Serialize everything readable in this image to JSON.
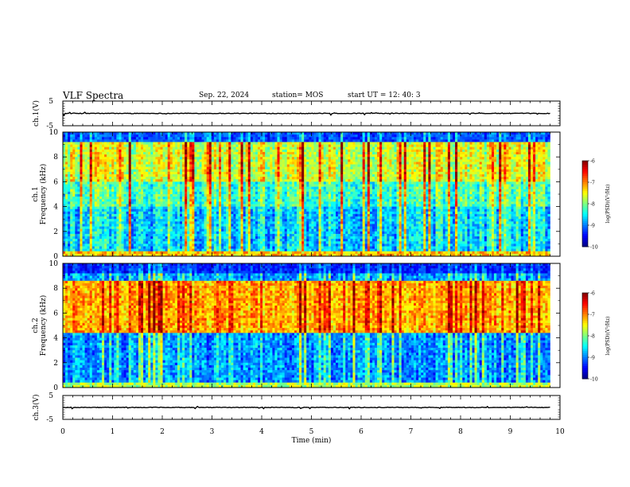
{
  "header": {
    "title": "VLF Spectra",
    "date": "Sep. 22, 2024",
    "station": "station= MOS",
    "start_ut": "start  UT  =    12: 40: 3"
  },
  "chart_data": [
    {
      "type": "line",
      "panel": "ch1-waveform",
      "ylabel": "ch.1(V)",
      "ylim": [
        -5,
        5
      ],
      "y_ticks": [
        "5",
        "-5"
      ],
      "xlim": [
        0,
        10
      ],
      "trace_end_min": 9.8,
      "baseline_v": 0
    },
    {
      "type": "heatmap",
      "panel": "ch1-spectrogram",
      "ylabel_line1": "ch.1",
      "ylabel_line2": "Frequency (kHz)",
      "ylim": [
        0,
        10
      ],
      "y_ticks": [
        "0",
        "2",
        "4",
        "6",
        "8",
        "10"
      ],
      "xlim": [
        0,
        10
      ],
      "data_end_min": 9.8,
      "colorbar": {
        "label": "log(PSD)(V²/Hz)",
        "range": [
          -10,
          -6
        ],
        "ticks": [
          "-6",
          "-7",
          "-8",
          "-9",
          "-10"
        ]
      },
      "dominant_band_khz": [
        0.5,
        9.0
      ]
    },
    {
      "type": "heatmap",
      "panel": "ch2-spectrogram",
      "ylabel_line1": "ch.2",
      "ylabel_line2": "Frequency (kHz)",
      "ylim": [
        0,
        10
      ],
      "y_ticks": [
        "0",
        "2",
        "4",
        "6",
        "8",
        "10"
      ],
      "xlim": [
        0,
        10
      ],
      "data_end_min": 9.8,
      "colorbar": {
        "label": "log(PSD)(V²/Hz)",
        "range": [
          -10,
          -6
        ],
        "ticks": [
          "-6",
          "-7",
          "-8",
          "-9",
          "-10"
        ]
      },
      "dominant_band_khz": [
        4.5,
        8.5
      ]
    },
    {
      "type": "line",
      "panel": "ch3-waveform",
      "ylabel": "ch.3(V)",
      "ylim": [
        -5,
        5
      ],
      "y_ticks": [
        "5",
        "-5"
      ],
      "xlim": [
        0,
        10
      ],
      "trace_end_min": 9.8,
      "baseline_v": 0,
      "xlabel": "Time  (min)",
      "x_ticks": [
        "0",
        "1",
        "2",
        "3",
        "4",
        "5",
        "6",
        "7",
        "8",
        "9",
        "10"
      ]
    }
  ],
  "colors": {
    "jet": [
      "#00007f",
      "#0000ff",
      "#007fff",
      "#00ffff",
      "#7fff7f",
      "#ffff00",
      "#ff7f00",
      "#ff0000",
      "#7f0000"
    ]
  }
}
